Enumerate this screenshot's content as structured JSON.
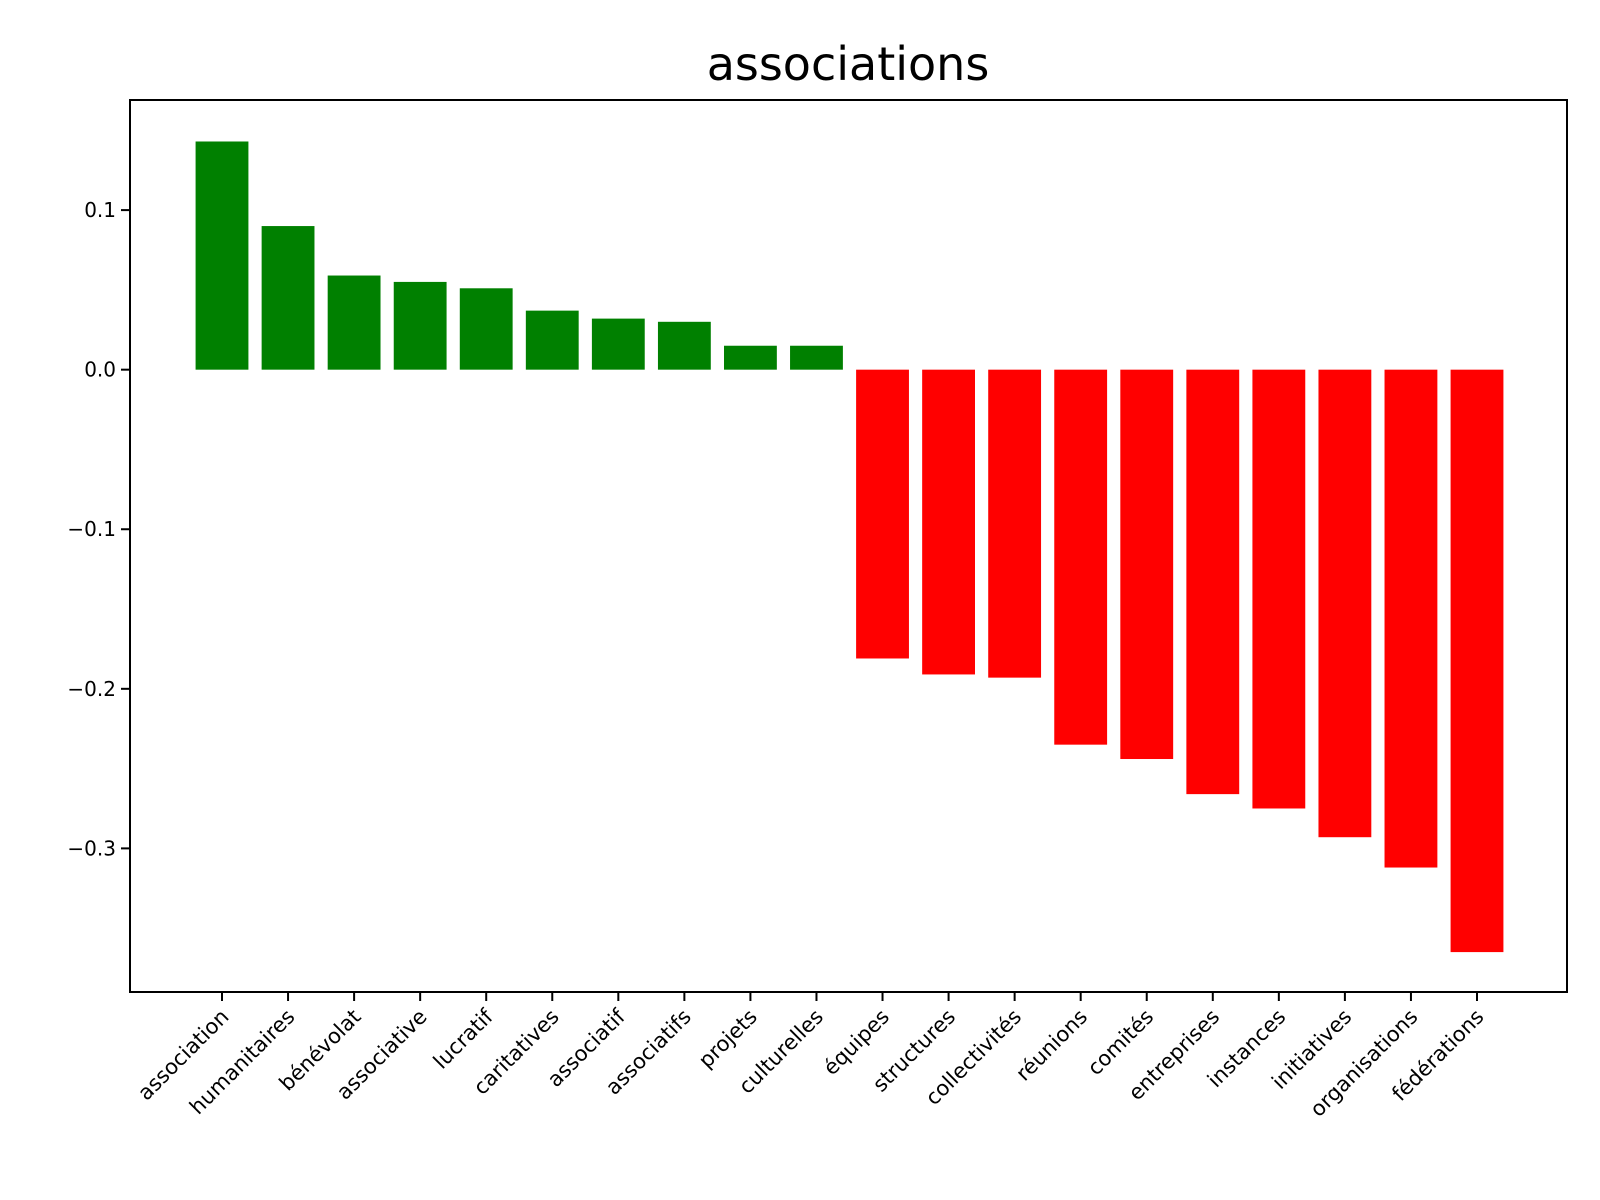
{
  "chart_data": {
    "type": "bar",
    "title": "associations",
    "xlabel": "",
    "ylabel": "",
    "categories": [
      "association",
      "humanitaires",
      "bénévolat",
      "associative",
      "lucratif",
      "caritatives",
      "associatif",
      "associatifs",
      "projets",
      "culturelles",
      "équipes",
      "structures",
      "collectivités",
      "réunions",
      "comités",
      "entreprises",
      "instances",
      "initiatives",
      "organisations",
      "fédérations"
    ],
    "values": [
      0.143,
      0.09,
      0.059,
      0.055,
      0.051,
      0.037,
      0.032,
      0.03,
      0.015,
      0.015,
      -0.181,
      -0.191,
      -0.193,
      -0.235,
      -0.244,
      -0.266,
      -0.275,
      -0.293,
      -0.312,
      -0.365
    ],
    "yticks": [
      0.1,
      0.0,
      -0.1,
      -0.2,
      -0.3
    ],
    "ytick_labels": [
      "0.1",
      "0.0",
      "−0.1",
      "−0.2",
      "−0.3"
    ],
    "ylim": [
      -0.39,
      0.169
    ],
    "grid": false,
    "colors": {
      "positive": "#008000",
      "negative": "#ff0000"
    }
  }
}
